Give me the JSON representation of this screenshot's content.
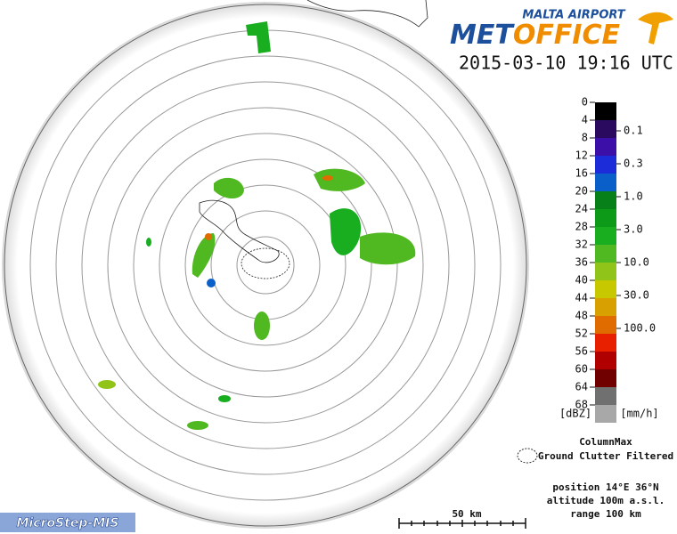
{
  "header": {
    "org": "MALTA AIRPORT",
    "logo_a": "MET",
    "logo_b": "OFFICE",
    "timestamp": "2015-03-10 19:16 UTC"
  },
  "legend": {
    "dbz": [
      "0",
      "4",
      "8",
      "12",
      "16",
      "20",
      "24",
      "28",
      "32",
      "36",
      "40",
      "44",
      "48",
      "52",
      "56",
      "60",
      "64",
      "68"
    ],
    "colors": [
      "#000000",
      "#2a0a5e",
      "#3c10a8",
      "#1c2cd8",
      "#0a60c8",
      "#08801a",
      "#0c9a18",
      "#18ae20",
      "#50b820",
      "#90c418",
      "#c8c800",
      "#d8a000",
      "#e06c00",
      "#e82000",
      "#b00000",
      "#700000",
      "#707070",
      "#a8a8a8"
    ],
    "rates": [
      "0.1",
      "0.3",
      "1.0",
      "3.0",
      "10.0",
      "30.0",
      "100.0"
    ],
    "unit_dbz": "[dBZ]",
    "unit_rate": "[mm/h]"
  },
  "notes": {
    "product": "ColumnMax",
    "filter": "Ground Clutter Filtered",
    "position": "position 14°E 36°N",
    "altitude": "altitude 100m a.s.l.",
    "range": "range 100 km"
  },
  "scale_bar": "50 km",
  "footer": "MicroStep-MIS"
}
